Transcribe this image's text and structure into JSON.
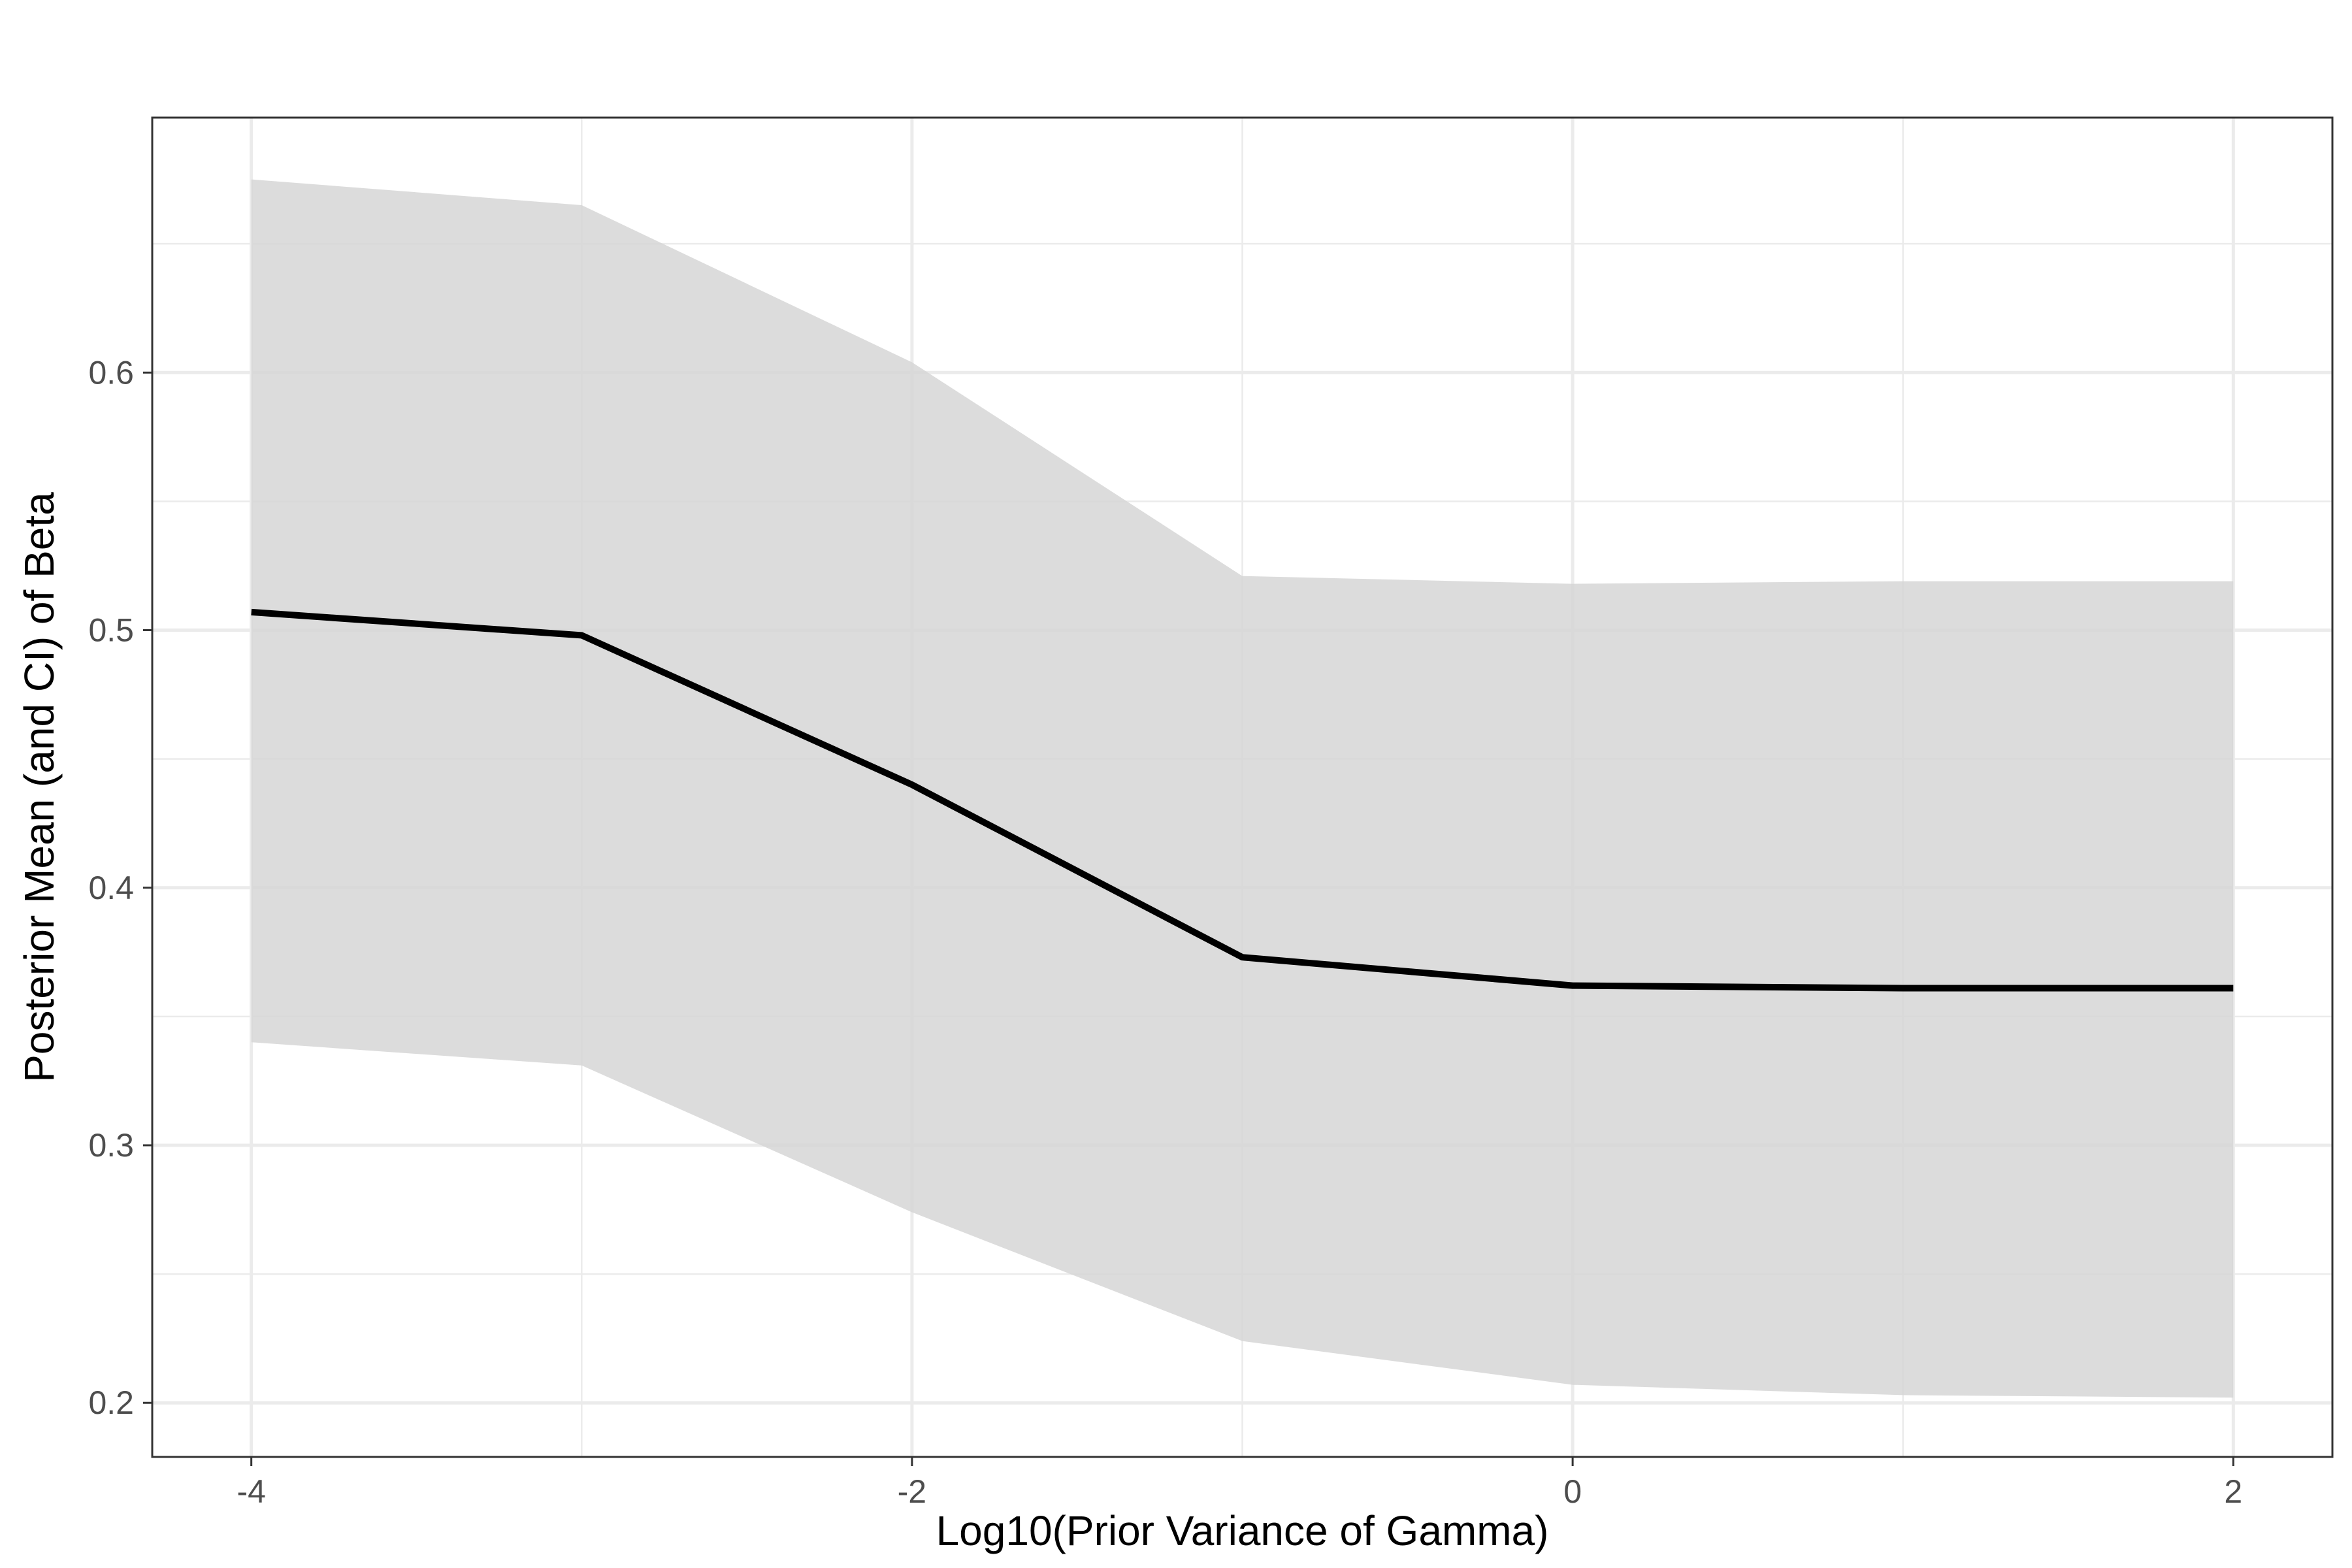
{
  "chart_data": {
    "type": "area",
    "xlabel": "Log10(Prior Variance of Gamma)",
    "ylabel": "Posterior Mean (and CI) of Beta",
    "xlim": [
      -4.3,
      2.3
    ],
    "ylim": [
      0.179,
      0.699
    ],
    "x_ticks": [
      -4,
      -2,
      0,
      2
    ],
    "x_tick_labels": [
      "-4",
      "-2",
      "0",
      "2"
    ],
    "y_ticks": [
      0.2,
      0.3,
      0.4,
      0.5,
      0.6
    ],
    "y_tick_labels": [
      "0.2",
      "0.3",
      "0.4",
      "0.5",
      "0.6"
    ],
    "grid": true,
    "x": [
      -4,
      -3,
      -2,
      -1,
      0,
      1,
      2
    ],
    "series": [
      {
        "role": "mean",
        "values": [
          0.507,
          0.498,
          0.44,
          0.373,
          0.362,
          0.361,
          0.361
        ]
      },
      {
        "role": "ci_lower",
        "values": [
          0.34,
          0.331,
          0.274,
          0.224,
          0.207,
          0.203,
          0.202
        ]
      },
      {
        "role": "ci_upper",
        "values": [
          0.675,
          0.665,
          0.604,
          0.521,
          0.518,
          0.519,
          0.519
        ]
      }
    ],
    "colors": {
      "line": "#000000",
      "ribbon": "#d6d6d6",
      "grid": "#ebebeb",
      "panel_border": "#333333"
    }
  }
}
